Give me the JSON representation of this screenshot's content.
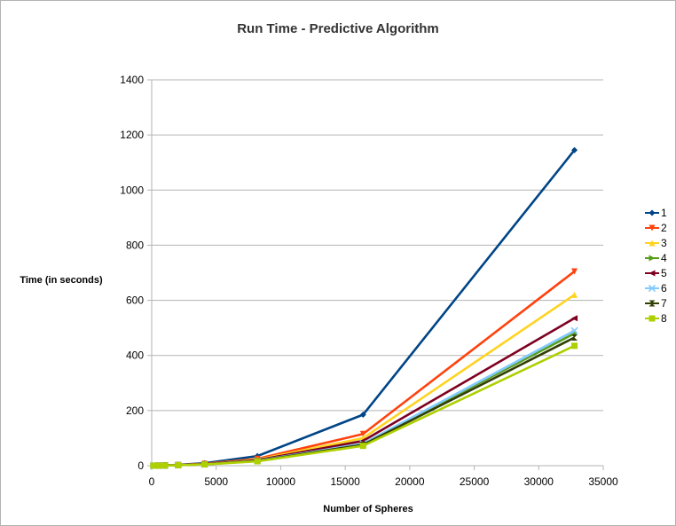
{
  "chart_data": {
    "type": "line",
    "title": "Run Time - Predictive Algorithm",
    "xlabel": "Number of Spheres",
    "ylabel": "Time (in seconds)",
    "xlim": [
      0,
      35000
    ],
    "ylim": [
      0,
      1400
    ],
    "xticks": [
      0,
      5000,
      10000,
      15000,
      20000,
      25000,
      30000,
      35000
    ],
    "yticks": [
      0,
      200,
      400,
      600,
      800,
      1000,
      1200,
      1400
    ],
    "grid": "horizontal",
    "legend": "right",
    "x": [
      128,
      256,
      512,
      1024,
      2048,
      4096,
      8192,
      16384,
      32768
    ],
    "series": [
      {
        "name": "1",
        "color": "#004586",
        "marker": "diamond",
        "values": [
          0.1,
          0.2,
          0.5,
          1.2,
          3,
          9,
          35,
          185,
          1145
        ]
      },
      {
        "name": "2",
        "color": "#ff420e",
        "marker": "triangle-down",
        "values": [
          0.1,
          0.2,
          0.4,
          1,
          2.5,
          7,
          25,
          115,
          705
        ]
      },
      {
        "name": "3",
        "color": "#ffd320",
        "marker": "triangle-up",
        "values": [
          0.1,
          0.2,
          0.4,
          0.9,
          2.2,
          6,
          22,
          100,
          620
        ]
      },
      {
        "name": "4",
        "color": "#579d1c",
        "marker": "triangle-right",
        "values": [
          0.1,
          0.2,
          0.3,
          0.8,
          2,
          5,
          18,
          80,
          480
        ]
      },
      {
        "name": "5",
        "color": "#7e0021",
        "marker": "triangle-left",
        "values": [
          0.1,
          0.2,
          0.4,
          0.9,
          2.1,
          6,
          20,
          90,
          535
        ]
      },
      {
        "name": "6",
        "color": "#83caff",
        "marker": "x",
        "values": [
          0.1,
          0.2,
          0.3,
          0.8,
          2,
          5,
          18,
          80,
          490
        ]
      },
      {
        "name": "7",
        "color": "#314004",
        "marker": "hourglass",
        "values": [
          0.1,
          0.2,
          0.3,
          0.8,
          1.9,
          5,
          17,
          76,
          465
        ]
      },
      {
        "name": "8",
        "color": "#aecf00",
        "marker": "square",
        "values": [
          0.1,
          0.2,
          0.3,
          0.7,
          1.8,
          4.5,
          16,
          72,
          435
        ]
      }
    ]
  }
}
